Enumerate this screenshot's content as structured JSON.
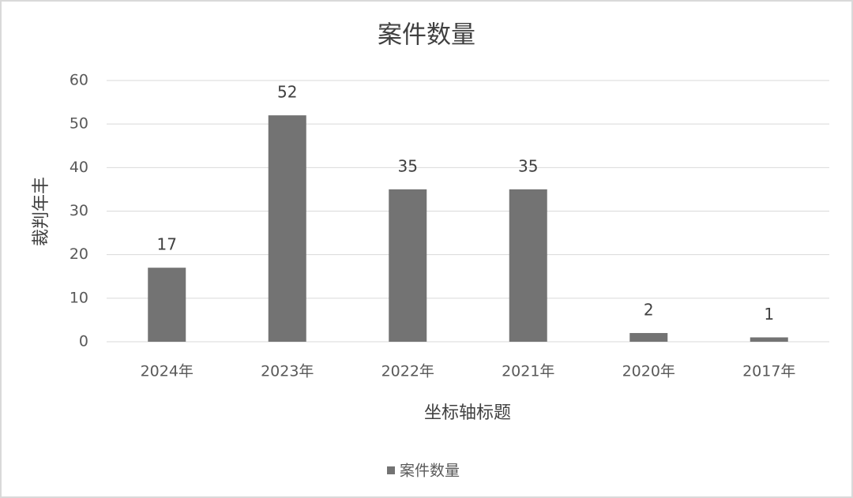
{
  "chart_data": {
    "type": "bar",
    "title": "案件数量",
    "x_label": "坐标轴标题",
    "y_label": "裁判年丰",
    "categories": [
      "2024年",
      "2023年",
      "2022年",
      "2021年",
      "2020年",
      "2017年"
    ],
    "series": [
      {
        "name": "案件数量",
        "color": "#737373",
        "values": [
          17,
          52,
          35,
          35,
          2,
          1
        ]
      }
    ],
    "ylim": [
      0,
      60
    ],
    "yticks": [
      0,
      10,
      20,
      30,
      40,
      50,
      60
    ],
    "grid": true,
    "legend": "bottom",
    "data_labels": true
  }
}
